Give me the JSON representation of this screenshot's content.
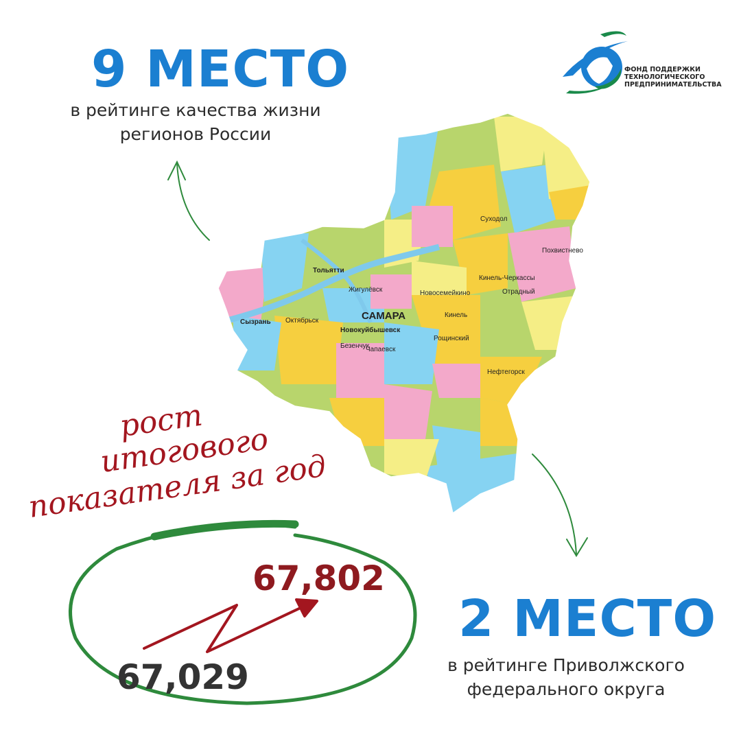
{
  "top_rank": {
    "title": "9 МЕСТО",
    "line1": "в рейтинге качества жизни",
    "line2": "регионов России"
  },
  "bottom_rank": {
    "title": "2 МЕСТО",
    "line1": "в рейтинге Приволжского",
    "line2": "федерального округа"
  },
  "logo": {
    "line1": "ФОНД ПОДДЕРЖКИ",
    "line2": "ТЕХНОЛОГИЧЕСКОГО",
    "line3": "ПРЕДПРИНИМАТЕЛЬСТВА",
    "colors": [
      "#1b7fd1",
      "#1a8a4a"
    ]
  },
  "growth": {
    "line1": "рост",
    "line2": "итогового",
    "line3": "показателя за год",
    "previous": "67,029",
    "current": "67,802"
  },
  "map": {
    "cities": {
      "samara": "САМАРА",
      "tolyatti": "Тольятти",
      "syzran": "Сызрань",
      "novokuibyshevsk": "Новокуйбышевск",
      "zhigulevsk": "Жигулёвск",
      "chapaevsk": "Чапаевск",
      "otradny": "Отрадный",
      "kinel": "Кинель",
      "neftegorsk": "Нефтегорск",
      "novosemeykino": "Новосемейкино",
      "pokhvistnevo": "Похвистнево",
      "sukhodol": "Суходол",
      "bezenchuk": "Безенчук",
      "oktyabrsk": "Октябрьск",
      "kinel_cherkassy": "Кинель-Черкассы",
      "roshchinsky": "Рощинский"
    },
    "colors": {
      "blue": "#86d3f2",
      "yellow": "#f6cf3f",
      "green": "#b8d56c",
      "pink": "#f3a9ca",
      "lightyellow": "#f5ee86",
      "river": "#7fc9ec"
    }
  },
  "colors": {
    "accent_blue": "#1b7fd1",
    "accent_red": "#a3161f",
    "arrow_green": "#2e8a3c",
    "text_dark": "#2b2b2b"
  }
}
